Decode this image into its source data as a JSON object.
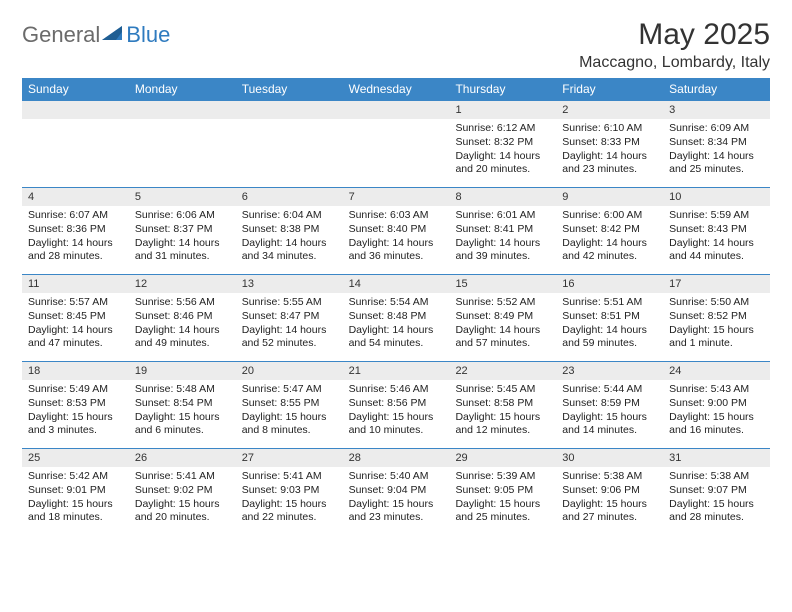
{
  "logo": {
    "general": "General",
    "blue": "Blue"
  },
  "title": "May 2025",
  "location": "Maccagno, Lombardy, Italy",
  "colors": {
    "header_bg": "#3b86c6",
    "header_text": "#ffffff",
    "daynum_bg": "#ececec",
    "border": "#3b86c6",
    "logo_gray": "#6b6b6b",
    "logo_blue": "#2f7bbf",
    "text": "#222222",
    "page_bg": "#ffffff"
  },
  "typography": {
    "title_fontsize": 30,
    "location_fontsize": 16,
    "dow_fontsize": 12,
    "body_fontsize": 10.5,
    "font_family": "Arial"
  },
  "days_of_week": [
    "Sunday",
    "Monday",
    "Tuesday",
    "Wednesday",
    "Thursday",
    "Friday",
    "Saturday"
  ],
  "weeks": [
    [
      null,
      null,
      null,
      null,
      {
        "n": "1",
        "sunrise": "Sunrise: 6:12 AM",
        "sunset": "Sunset: 8:32 PM",
        "daylight": "Daylight: 14 hours and 20 minutes."
      },
      {
        "n": "2",
        "sunrise": "Sunrise: 6:10 AM",
        "sunset": "Sunset: 8:33 PM",
        "daylight": "Daylight: 14 hours and 23 minutes."
      },
      {
        "n": "3",
        "sunrise": "Sunrise: 6:09 AM",
        "sunset": "Sunset: 8:34 PM",
        "daylight": "Daylight: 14 hours and 25 minutes."
      }
    ],
    [
      {
        "n": "4",
        "sunrise": "Sunrise: 6:07 AM",
        "sunset": "Sunset: 8:36 PM",
        "daylight": "Daylight: 14 hours and 28 minutes."
      },
      {
        "n": "5",
        "sunrise": "Sunrise: 6:06 AM",
        "sunset": "Sunset: 8:37 PM",
        "daylight": "Daylight: 14 hours and 31 minutes."
      },
      {
        "n": "6",
        "sunrise": "Sunrise: 6:04 AM",
        "sunset": "Sunset: 8:38 PM",
        "daylight": "Daylight: 14 hours and 34 minutes."
      },
      {
        "n": "7",
        "sunrise": "Sunrise: 6:03 AM",
        "sunset": "Sunset: 8:40 PM",
        "daylight": "Daylight: 14 hours and 36 minutes."
      },
      {
        "n": "8",
        "sunrise": "Sunrise: 6:01 AM",
        "sunset": "Sunset: 8:41 PM",
        "daylight": "Daylight: 14 hours and 39 minutes."
      },
      {
        "n": "9",
        "sunrise": "Sunrise: 6:00 AM",
        "sunset": "Sunset: 8:42 PM",
        "daylight": "Daylight: 14 hours and 42 minutes."
      },
      {
        "n": "10",
        "sunrise": "Sunrise: 5:59 AM",
        "sunset": "Sunset: 8:43 PM",
        "daylight": "Daylight: 14 hours and 44 minutes."
      }
    ],
    [
      {
        "n": "11",
        "sunrise": "Sunrise: 5:57 AM",
        "sunset": "Sunset: 8:45 PM",
        "daylight": "Daylight: 14 hours and 47 minutes."
      },
      {
        "n": "12",
        "sunrise": "Sunrise: 5:56 AM",
        "sunset": "Sunset: 8:46 PM",
        "daylight": "Daylight: 14 hours and 49 minutes."
      },
      {
        "n": "13",
        "sunrise": "Sunrise: 5:55 AM",
        "sunset": "Sunset: 8:47 PM",
        "daylight": "Daylight: 14 hours and 52 minutes."
      },
      {
        "n": "14",
        "sunrise": "Sunrise: 5:54 AM",
        "sunset": "Sunset: 8:48 PM",
        "daylight": "Daylight: 14 hours and 54 minutes."
      },
      {
        "n": "15",
        "sunrise": "Sunrise: 5:52 AM",
        "sunset": "Sunset: 8:49 PM",
        "daylight": "Daylight: 14 hours and 57 minutes."
      },
      {
        "n": "16",
        "sunrise": "Sunrise: 5:51 AM",
        "sunset": "Sunset: 8:51 PM",
        "daylight": "Daylight: 14 hours and 59 minutes."
      },
      {
        "n": "17",
        "sunrise": "Sunrise: 5:50 AM",
        "sunset": "Sunset: 8:52 PM",
        "daylight": "Daylight: 15 hours and 1 minute."
      }
    ],
    [
      {
        "n": "18",
        "sunrise": "Sunrise: 5:49 AM",
        "sunset": "Sunset: 8:53 PM",
        "daylight": "Daylight: 15 hours and 3 minutes."
      },
      {
        "n": "19",
        "sunrise": "Sunrise: 5:48 AM",
        "sunset": "Sunset: 8:54 PM",
        "daylight": "Daylight: 15 hours and 6 minutes."
      },
      {
        "n": "20",
        "sunrise": "Sunrise: 5:47 AM",
        "sunset": "Sunset: 8:55 PM",
        "daylight": "Daylight: 15 hours and 8 minutes."
      },
      {
        "n": "21",
        "sunrise": "Sunrise: 5:46 AM",
        "sunset": "Sunset: 8:56 PM",
        "daylight": "Daylight: 15 hours and 10 minutes."
      },
      {
        "n": "22",
        "sunrise": "Sunrise: 5:45 AM",
        "sunset": "Sunset: 8:58 PM",
        "daylight": "Daylight: 15 hours and 12 minutes."
      },
      {
        "n": "23",
        "sunrise": "Sunrise: 5:44 AM",
        "sunset": "Sunset: 8:59 PM",
        "daylight": "Daylight: 15 hours and 14 minutes."
      },
      {
        "n": "24",
        "sunrise": "Sunrise: 5:43 AM",
        "sunset": "Sunset: 9:00 PM",
        "daylight": "Daylight: 15 hours and 16 minutes."
      }
    ],
    [
      {
        "n": "25",
        "sunrise": "Sunrise: 5:42 AM",
        "sunset": "Sunset: 9:01 PM",
        "daylight": "Daylight: 15 hours and 18 minutes."
      },
      {
        "n": "26",
        "sunrise": "Sunrise: 5:41 AM",
        "sunset": "Sunset: 9:02 PM",
        "daylight": "Daylight: 15 hours and 20 minutes."
      },
      {
        "n": "27",
        "sunrise": "Sunrise: 5:41 AM",
        "sunset": "Sunset: 9:03 PM",
        "daylight": "Daylight: 15 hours and 22 minutes."
      },
      {
        "n": "28",
        "sunrise": "Sunrise: 5:40 AM",
        "sunset": "Sunset: 9:04 PM",
        "daylight": "Daylight: 15 hours and 23 minutes."
      },
      {
        "n": "29",
        "sunrise": "Sunrise: 5:39 AM",
        "sunset": "Sunset: 9:05 PM",
        "daylight": "Daylight: 15 hours and 25 minutes."
      },
      {
        "n": "30",
        "sunrise": "Sunrise: 5:38 AM",
        "sunset": "Sunset: 9:06 PM",
        "daylight": "Daylight: 15 hours and 27 minutes."
      },
      {
        "n": "31",
        "sunrise": "Sunrise: 5:38 AM",
        "sunset": "Sunset: 9:07 PM",
        "daylight": "Daylight: 15 hours and 28 minutes."
      }
    ]
  ]
}
